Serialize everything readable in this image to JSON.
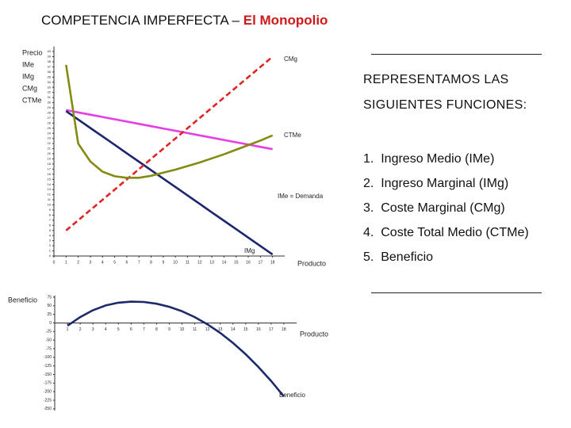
{
  "title_parts": [
    "COMPETENCIA IMPERFECTA – ",
    "El Monopolio"
  ],
  "panel": {
    "heading": [
      "REPRESENTAMOS LAS",
      "SIGUIENTES FUNCIONES:"
    ],
    "items": [
      "1.  Ingreso Medio (IMe)",
      "2.  Ingreso Marginal (IMg)",
      "3.  Coste Marginal (CMg)",
      "4.  Coste Total Medio (CTMe)",
      "5.  Beneficio"
    ]
  },
  "chart_data": [
    {
      "type": "line",
      "y_label": "Precio",
      "x_label": "Producto",
      "annotations": [
        "CMg",
        "CTMe",
        "IMe = Demanda",
        "IMg"
      ],
      "x": [
        1,
        2,
        3,
        4,
        5,
        6,
        7,
        8,
        9,
        10,
        11,
        12,
        13,
        14,
        15,
        16,
        17,
        18
      ],
      "series": [
        {
          "name": "IMe",
          "color": "#e43ee4",
          "style": "solid",
          "values": [
            28.55,
            28.1,
            27.65,
            27.2,
            26.75,
            26.3,
            25.85,
            25.4,
            24.95,
            24.5,
            24.05,
            23.6,
            23.15,
            22.7,
            22.25,
            21.8,
            21.35,
            20.9
          ]
        },
        {
          "name": "IMg",
          "color": "#1c2570",
          "style": "solid",
          "values": [
            28.35,
            26.7,
            25.05,
            23.4,
            21.75,
            20.1,
            18.45,
            16.8,
            15.15,
            13.5,
            11.85,
            10.2,
            8.55,
            6.9,
            5.25,
            3.6,
            1.95,
            0.3
          ]
        },
        {
          "name": "CMg",
          "color": "#e02424",
          "style": "dashed",
          "values": [
            5,
            7,
            9,
            11,
            13,
            15,
            17,
            19,
            21,
            23,
            25,
            27,
            29,
            31,
            33,
            35,
            37,
            39
          ]
        },
        {
          "name": "CTMe",
          "color": "#858a10",
          "style": "solid",
          "values": [
            37.4,
            22,
            18.5,
            16.5,
            15.6,
            15.3,
            15.3,
            15.7,
            16.3,
            16.9,
            17.6,
            18.3,
            19.1,
            19.9,
            20.8,
            21.7,
            22.6,
            23.6
          ]
        }
      ],
      "xlim": [
        0,
        19
      ],
      "xticks": [
        0,
        1,
        2,
        3,
        4,
        5,
        6,
        7,
        8,
        9,
        10,
        11,
        12,
        13,
        14,
        15,
        16,
        17,
        18
      ],
      "ylim": [
        0,
        41
      ],
      "yticks": [
        0,
        1,
        2,
        3,
        4,
        5,
        6,
        7,
        8,
        9,
        10,
        11,
        12,
        13,
        14,
        15,
        16,
        17,
        18,
        19,
        20,
        21,
        22,
        23,
        24,
        25,
        26,
        27,
        28,
        29,
        30,
        31,
        32,
        33,
        34,
        35,
        36,
        37,
        38,
        39,
        40
      ]
    },
    {
      "type": "line",
      "y_label": "Beneficio",
      "x_label": "Producto",
      "x": [
        1,
        2,
        3,
        4,
        5,
        6,
        7,
        8,
        9,
        10,
        11,
        12,
        13,
        14,
        15,
        16,
        17,
        18
      ],
      "series": [
        {
          "name": "Beneficio",
          "color": "#1c2a6c",
          "style": "solid",
          "values": [
            -8,
            17,
            37,
            51,
            59,
            62,
            61,
            56,
            47,
            34,
            17,
            -4,
            -29,
            -58,
            -91,
            -128,
            -169,
            -214
          ]
        }
      ],
      "xlim": [
        0,
        19
      ],
      "xticks": [
        1,
        2,
        3,
        4,
        5,
        6,
        7,
        8,
        9,
        10,
        11,
        12,
        13,
        14,
        15,
        16,
        17,
        18
      ],
      "ylim": [
        -255,
        80
      ],
      "yticks": [
        -250,
        -225,
        -200,
        -175,
        -150,
        -125,
        -100,
        -75,
        -50,
        -25,
        0,
        25,
        50,
        75
      ]
    }
  ]
}
